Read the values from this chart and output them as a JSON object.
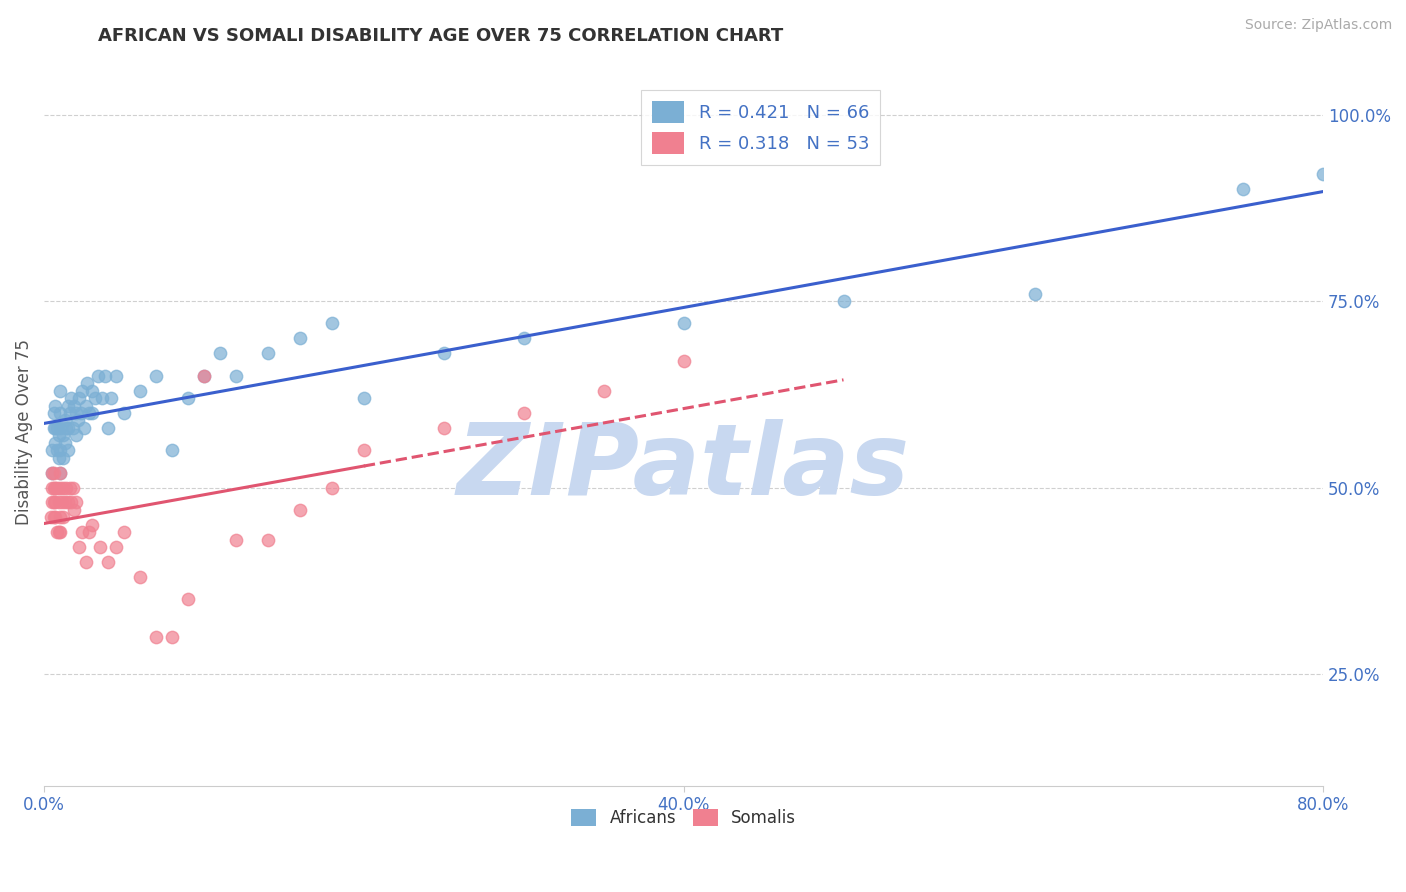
{
  "title": "AFRICAN VS SOMALI DISABILITY AGE OVER 75 CORRELATION CHART",
  "source_text": "Source: ZipAtlas.com",
  "ylabel": "Disability Age Over 75",
  "xmin": 0.0,
  "xmax": 0.8,
  "ymin": 0.1,
  "ymax": 1.05,
  "yticks_right": [
    0.25,
    0.5,
    0.75,
    1.0
  ],
  "ytick_right_labels": [
    "25.0%",
    "50.0%",
    "75.0%",
    "100.0%"
  ],
  "african_color": "#7bafd4",
  "somali_color": "#f08090",
  "trendline_african_color": "#3a5fcd",
  "trendline_somali_color": "#e05570",
  "background_color": "#ffffff",
  "grid_color": "#d0d0d0",
  "r_african": 0.421,
  "n_african": 66,
  "r_somali": 0.318,
  "n_somali": 53,
  "title_color": "#333333",
  "axis_color": "#4472c4",
  "africans_x": [
    0.005,
    0.005,
    0.006,
    0.006,
    0.007,
    0.007,
    0.007,
    0.008,
    0.008,
    0.009,
    0.009,
    0.01,
    0.01,
    0.01,
    0.01,
    0.01,
    0.012,
    0.012,
    0.013,
    0.013,
    0.014,
    0.015,
    0.015,
    0.015,
    0.016,
    0.017,
    0.018,
    0.019,
    0.02,
    0.02,
    0.021,
    0.022,
    0.023,
    0.024,
    0.025,
    0.026,
    0.027,
    0.028,
    0.03,
    0.03,
    0.032,
    0.034,
    0.036,
    0.038,
    0.04,
    0.042,
    0.045,
    0.05,
    0.06,
    0.07,
    0.08,
    0.09,
    0.1,
    0.11,
    0.12,
    0.14,
    0.16,
    0.18,
    0.2,
    0.25,
    0.3,
    0.4,
    0.5,
    0.62,
    0.75,
    0.8
  ],
  "africans_y": [
    0.52,
    0.55,
    0.58,
    0.6,
    0.56,
    0.58,
    0.61,
    0.55,
    0.58,
    0.54,
    0.57,
    0.52,
    0.55,
    0.58,
    0.6,
    0.63,
    0.54,
    0.57,
    0.56,
    0.59,
    0.58,
    0.55,
    0.58,
    0.61,
    0.6,
    0.62,
    0.58,
    0.61,
    0.57,
    0.6,
    0.59,
    0.62,
    0.6,
    0.63,
    0.58,
    0.61,
    0.64,
    0.6,
    0.6,
    0.63,
    0.62,
    0.65,
    0.62,
    0.65,
    0.58,
    0.62,
    0.65,
    0.6,
    0.63,
    0.65,
    0.55,
    0.62,
    0.65,
    0.68,
    0.65,
    0.68,
    0.7,
    0.72,
    0.62,
    0.68,
    0.7,
    0.72,
    0.75,
    0.76,
    0.9,
    0.92
  ],
  "somalis_x": [
    0.004,
    0.005,
    0.005,
    0.005,
    0.006,
    0.006,
    0.006,
    0.006,
    0.007,
    0.007,
    0.007,
    0.008,
    0.008,
    0.009,
    0.009,
    0.01,
    0.01,
    0.01,
    0.01,
    0.011,
    0.012,
    0.012,
    0.013,
    0.014,
    0.015,
    0.016,
    0.017,
    0.018,
    0.019,
    0.02,
    0.022,
    0.024,
    0.026,
    0.028,
    0.03,
    0.035,
    0.04,
    0.045,
    0.05,
    0.06,
    0.07,
    0.08,
    0.09,
    0.1,
    0.12,
    0.14,
    0.16,
    0.18,
    0.2,
    0.25,
    0.3,
    0.35,
    0.4
  ],
  "somalis_y": [
    0.46,
    0.5,
    0.52,
    0.48,
    0.5,
    0.52,
    0.46,
    0.48,
    0.5,
    0.46,
    0.48,
    0.5,
    0.44,
    0.48,
    0.44,
    0.5,
    0.52,
    0.44,
    0.46,
    0.48,
    0.46,
    0.5,
    0.48,
    0.5,
    0.48,
    0.5,
    0.48,
    0.5,
    0.47,
    0.48,
    0.42,
    0.44,
    0.4,
    0.44,
    0.45,
    0.42,
    0.4,
    0.42,
    0.44,
    0.38,
    0.3,
    0.3,
    0.35,
    0.65,
    0.43,
    0.43,
    0.47,
    0.5,
    0.55,
    0.58,
    0.6,
    0.63,
    0.67
  ],
  "watermark_text": "ZIPatlas",
  "watermark_color": "#c8d8f0",
  "trendline_african_start": 0.0,
  "trendline_african_end": 0.8,
  "trendline_somali_solid_end": 0.2,
  "trendline_somali_dashed_end": 0.5
}
